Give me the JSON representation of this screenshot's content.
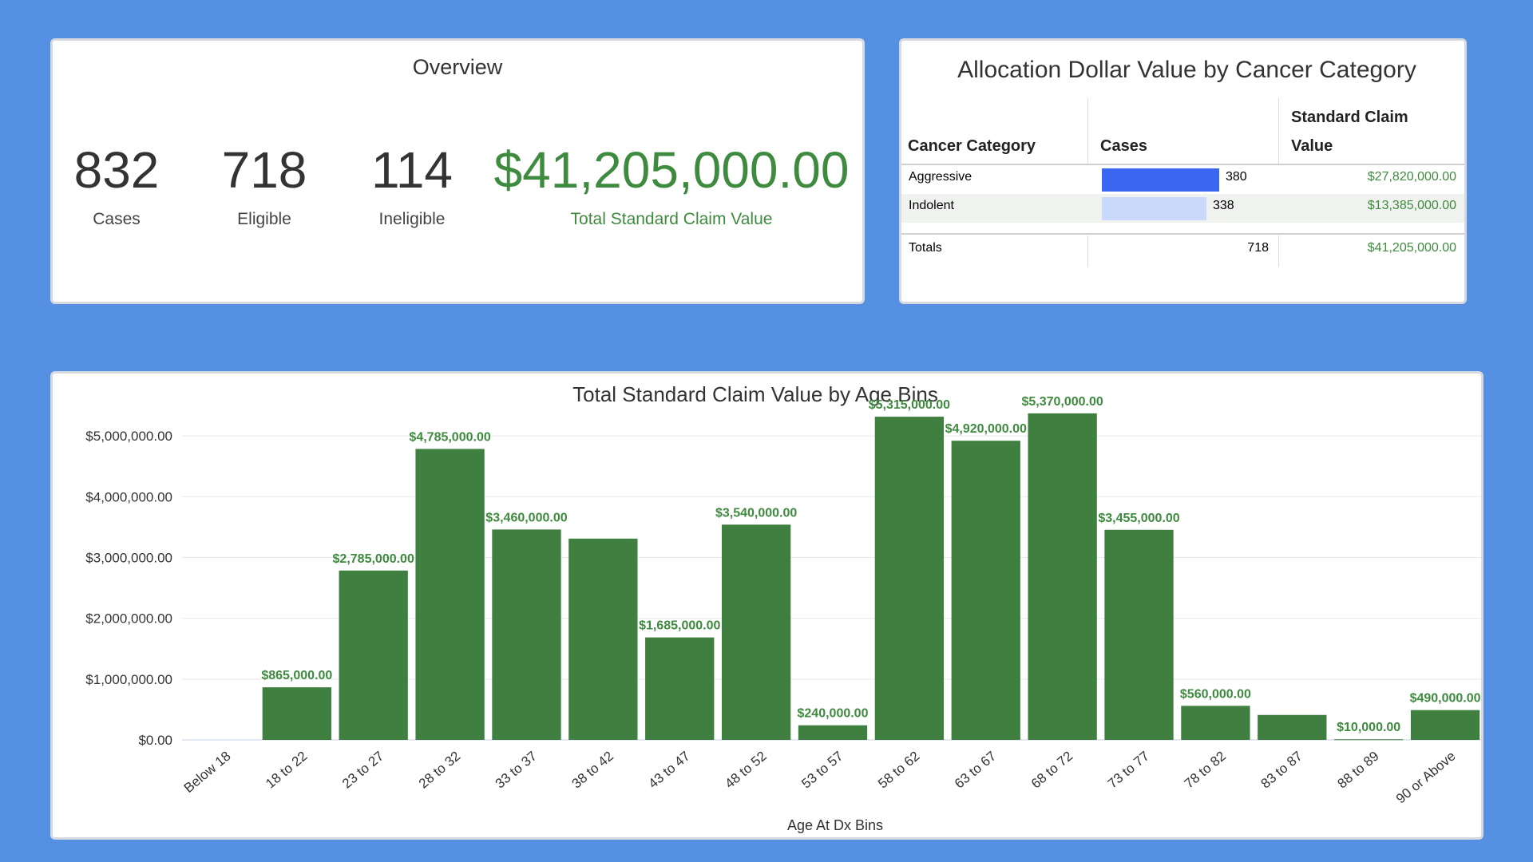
{
  "overview": {
    "title": "Overview",
    "metrics": [
      {
        "value": "832",
        "label": "Cases"
      },
      {
        "value": "718",
        "label": "Eligible"
      },
      {
        "value": "114",
        "label": "Ineligible"
      },
      {
        "value": "$41,205,000.00",
        "label": "Total Standard Claim Value"
      }
    ]
  },
  "allocation": {
    "title": "Allocation Dollar Value by Cancer Category",
    "headers": {
      "category": "Cancer Category",
      "cases": "Cases",
      "value_line1": "Standard Claim",
      "value_line2": "Value"
    },
    "rows": [
      {
        "category": "Aggressive",
        "cases": "380",
        "cases_num": 380,
        "value": "$27,820,000.00",
        "bar_color": "#3a66f2"
      },
      {
        "category": "Indolent",
        "cases": "338",
        "cases_num": 338,
        "value": "$13,385,000.00",
        "bar_color": "#c9d9fb"
      }
    ],
    "totals": {
      "label": "Totals",
      "cases": "718",
      "value": "$41,205,000.00"
    }
  },
  "chart_data": {
    "type": "bar",
    "title": "Total Standard Claim Value by Age Bins",
    "xlabel": "Age At Dx Bins",
    "ylabel": "",
    "ylim": [
      0,
      5500000
    ],
    "yticks": [
      "$0.00",
      "$1,000,000.00",
      "$2,000,000.00",
      "$3,000,000.00",
      "$4,000,000.00",
      "$5,000,000.00"
    ],
    "ytick_values": [
      0,
      1000000,
      2000000,
      3000000,
      4000000,
      5000000
    ],
    "categories": [
      "Below 18",
      "18 to 22",
      "23 to 27",
      "28 to 32",
      "33 to 37",
      "38 to 42",
      "43 to 47",
      "48 to 52",
      "53 to 57",
      "58 to 62",
      "63 to 67",
      "68 to 72",
      "73 to 77",
      "78 to 82",
      "83 to 87",
      "88 to 89",
      "90 or Above"
    ],
    "values": [
      0,
      865000,
      2785000,
      4785000,
      3460000,
      3310000,
      1685000,
      3540000,
      240000,
      5315000,
      4920000,
      5370000,
      3455000,
      560000,
      410000,
      10000,
      490000
    ],
    "data_labels": [
      "",
      "$865,000.00",
      "$2,785,000.00",
      "$4,785,000.00",
      "$3,460,000.00",
      "",
      "$1,685,000.00",
      "$3,540,000.00",
      "$240,000.00",
      "$5,315,000.00",
      "$4,920,000.00",
      "$5,370,000.00",
      "$3,455,000.00",
      "$560,000.00",
      "",
      "$10,000.00",
      "$490,000.00"
    ],
    "bar_color": "#3f7f3f",
    "label_color": "#3e8a3e",
    "grid": true
  }
}
